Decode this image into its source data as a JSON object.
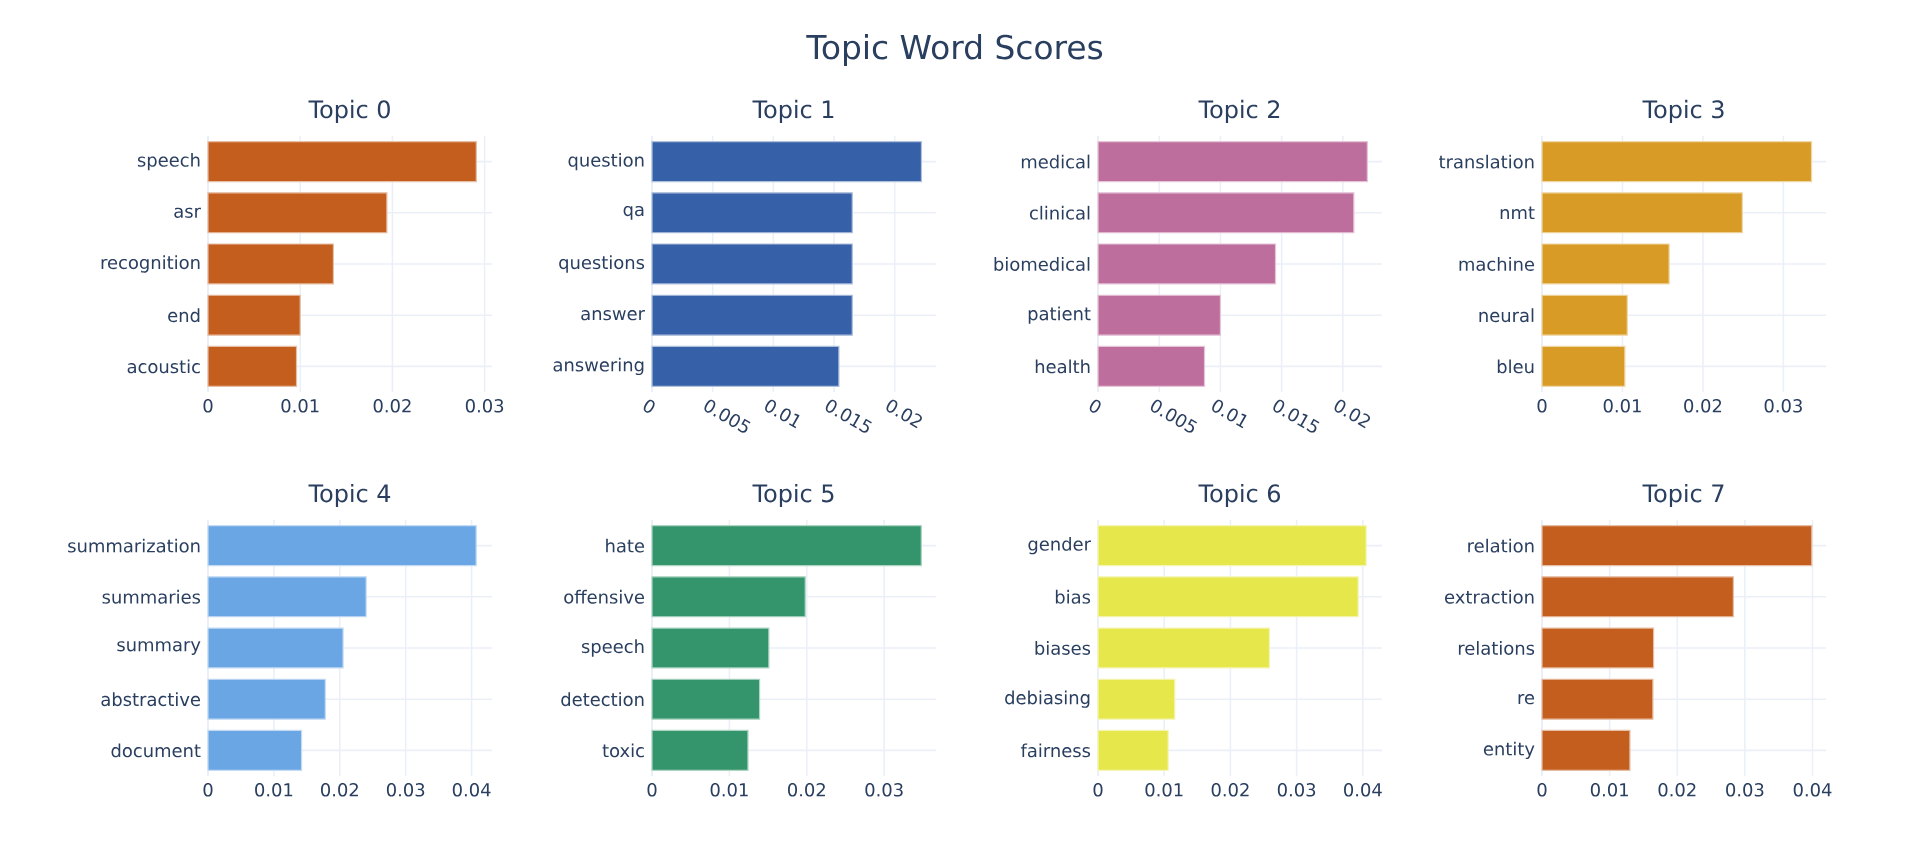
{
  "chart_data": [
    {
      "type": "other",
      "title": "Topic Word Scores"
    },
    {
      "type": "bar",
      "orientation": "horizontal",
      "title": "Topic 0",
      "categories": [
        "speech",
        "asr",
        "recognition",
        "end",
        "acoustic"
      ],
      "values": [
        0.0291,
        0.0194,
        0.0136,
        0.01,
        0.0096
      ],
      "color": "#c45e1e",
      "xlim": [
        0,
        0.0308
      ],
      "xticks": [
        0,
        0.01,
        0.02,
        0.03
      ],
      "grid": true
    },
    {
      "type": "bar",
      "orientation": "horizontal",
      "title": "Topic 1",
      "categories": [
        "question",
        "qa",
        "questions",
        "answer",
        "answering"
      ],
      "values": [
        0.0222,
        0.0165,
        0.0165,
        0.0165,
        0.0154
      ],
      "color": "#3661a8",
      "xlim": [
        0,
        0.0234
      ],
      "xticks": [
        0,
        0.005,
        0.01,
        0.015,
        0.02
      ],
      "grid": true
    },
    {
      "type": "bar",
      "orientation": "horizontal",
      "title": "Topic 2",
      "categories": [
        "medical",
        "clinical",
        "biomedical",
        "patient",
        "health"
      ],
      "values": [
        0.022,
        0.0209,
        0.0145,
        0.01,
        0.0087
      ],
      "color": "#be6e9c",
      "xlim": [
        0,
        0.0232
      ],
      "xticks": [
        0,
        0.005,
        0.01,
        0.015,
        0.02
      ],
      "grid": true
    },
    {
      "type": "bar",
      "orientation": "horizontal",
      "title": "Topic 3",
      "categories": [
        "translation",
        "nmt",
        "machine",
        "neural",
        "bleu"
      ],
      "values": [
        0.0335,
        0.0249,
        0.0158,
        0.0106,
        0.0103
      ],
      "color": "#d89c26",
      "xlim": [
        0,
        0.0353
      ],
      "xticks": [
        0,
        0.01,
        0.02,
        0.03
      ],
      "grid": true
    },
    {
      "type": "bar",
      "orientation": "horizontal",
      "title": "Topic 4",
      "categories": [
        "summarization",
        "summaries",
        "summary",
        "abstractive",
        "document"
      ],
      "values": [
        0.0407,
        0.024,
        0.0205,
        0.0178,
        0.0142
      ],
      "color": "#6aa6e3",
      "xlim": [
        0,
        0.0431
      ],
      "xticks": [
        0,
        0.01,
        0.02,
        0.03,
        0.04
      ],
      "grid": true
    },
    {
      "type": "bar",
      "orientation": "horizontal",
      "title": "Topic 5",
      "categories": [
        "hate",
        "offensive",
        "speech",
        "detection",
        "toxic"
      ],
      "values": [
        0.0348,
        0.0198,
        0.0151,
        0.0139,
        0.0124
      ],
      "color": "#34956c",
      "xlim": [
        0,
        0.0367
      ],
      "xticks": [
        0,
        0.01,
        0.02,
        0.03
      ],
      "grid": true
    },
    {
      "type": "bar",
      "orientation": "horizontal",
      "title": "Topic 6",
      "categories": [
        "gender",
        "bias",
        "biases",
        "debiasing",
        "fairness"
      ],
      "values": [
        0.0405,
        0.0393,
        0.0259,
        0.0116,
        0.0106
      ],
      "color": "#e5e74a",
      "xlim": [
        0,
        0.0429
      ],
      "xticks": [
        0,
        0.01,
        0.02,
        0.03,
        0.04
      ],
      "grid": true
    },
    {
      "type": "bar",
      "orientation": "horizontal",
      "title": "Topic 7",
      "categories": [
        "relation",
        "extraction",
        "relations",
        "re",
        "entity"
      ],
      "values": [
        0.0399,
        0.0283,
        0.0165,
        0.0164,
        0.013
      ],
      "color": "#c45e1e",
      "xlim": [
        0,
        0.042
      ],
      "xticks": [
        0,
        0.01,
        0.02,
        0.03,
        0.04
      ],
      "grid": true
    }
  ]
}
